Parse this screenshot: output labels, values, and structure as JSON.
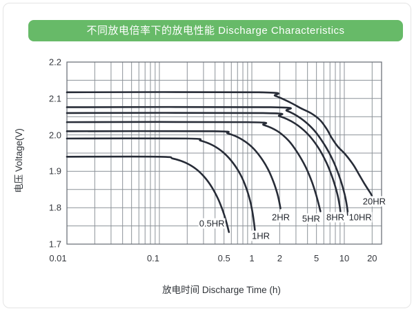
{
  "header": {
    "title": "不同放电倍率下的放电性能 Discharge Characteristics",
    "bg_color": "#67ba68",
    "text_color": "#ffffff"
  },
  "chart_data": {
    "type": "line",
    "title": "不同放电倍率下的放电性能 Discharge Characteristics",
    "x_title": "放电时间  Discharge Time (h)",
    "y_title": "电压  Voltage(V)",
    "x_scale": "log",
    "x_range": [
      0.01,
      25.3
    ],
    "y_range": [
      1.7,
      2.2
    ],
    "y_grid_step": 0.05,
    "grid": true,
    "legend": "inline-curve-labels",
    "colors": {
      "curve": "#272c37",
      "grid": "#8c9298",
      "border": "#6e737b",
      "text": "#36393f"
    },
    "y_ticks": [
      {
        "v": 2.2,
        "label": "2.2"
      },
      {
        "v": 2.1,
        "label": "2.1"
      },
      {
        "v": 2.0,
        "label": "2.0"
      },
      {
        "v": 1.9,
        "label": "1.9"
      },
      {
        "v": 1.8,
        "label": "1.8"
      },
      {
        "v": 1.7,
        "label": "1.7"
      }
    ],
    "x_ticks": [
      {
        "v": 0.01,
        "label": "0.01",
        "dx": -13
      },
      {
        "v": 0.1,
        "label": "0.1",
        "dx": -9
      },
      {
        "v": 0.5,
        "label": "0.5",
        "dx": 0
      },
      {
        "v": 1,
        "label": "1",
        "dx": 0
      },
      {
        "v": 2,
        "label": "2",
        "dx": 0
      },
      {
        "v": 5,
        "label": "5",
        "dx": 0
      },
      {
        "v": 10,
        "label": "10",
        "dx": 0
      },
      {
        "v": 20,
        "label": "20",
        "dx": 0
      }
    ],
    "series": [
      {
        "name": "0.5HR",
        "rated_hours": 0.5,
        "plateau_v": 1.94,
        "label_pos": [
          0.37,
          1.757
        ],
        "points": [
          [
            0.01,
            1.94
          ],
          [
            0.1,
            1.94
          ],
          [
            0.14,
            1.935
          ],
          [
            0.19,
            1.924
          ],
          [
            0.25,
            1.906
          ],
          [
            0.31,
            1.883
          ],
          [
            0.37,
            1.856
          ],
          [
            0.43,
            1.825
          ],
          [
            0.48,
            1.795
          ],
          [
            0.52,
            1.768
          ],
          [
            0.55,
            1.745
          ],
          [
            0.565,
            1.733
          ]
        ]
      },
      {
        "name": "1HR",
        "rated_hours": 1,
        "plateau_v": 1.99,
        "label_pos": [
          1.25,
          1.723
        ],
        "points": [
          [
            0.01,
            1.99
          ],
          [
            0.2,
            1.99
          ],
          [
            0.28,
            1.984
          ],
          [
            0.38,
            1.971
          ],
          [
            0.5,
            1.95
          ],
          [
            0.63,
            1.922
          ],
          [
            0.76,
            1.889
          ],
          [
            0.87,
            1.854
          ],
          [
            0.96,
            1.818
          ],
          [
            1.02,
            1.785
          ],
          [
            1.06,
            1.755
          ],
          [
            1.08,
            1.737
          ]
        ]
      },
      {
        "name": "2HR",
        "rated_hours": 2,
        "plateau_v": 2.01,
        "label_pos": [
          2.06,
          1.774
        ],
        "points": [
          [
            0.01,
            2.01
          ],
          [
            0.38,
            2.01
          ],
          [
            0.55,
            2.004
          ],
          [
            0.75,
            1.99
          ],
          [
            1.0,
            1.967
          ],
          [
            1.25,
            1.938
          ],
          [
            1.5,
            1.905
          ],
          [
            1.72,
            1.87
          ],
          [
            1.89,
            1.838
          ],
          [
            1.99,
            1.813
          ],
          [
            2.04,
            1.798
          ]
        ]
      },
      {
        "name": "5HR",
        "rated_hours": 5,
        "plateau_v": 2.035,
        "label_pos": [
          4.38,
          1.77
        ],
        "points": [
          [
            0.01,
            2.035
          ],
          [
            0.9,
            2.035
          ],
          [
            1.35,
            2.027
          ],
          [
            1.9,
            2.01
          ],
          [
            2.5,
            1.984
          ],
          [
            3.1,
            1.952
          ],
          [
            3.8,
            1.913
          ],
          [
            4.45,
            1.872
          ],
          [
            4.95,
            1.836
          ],
          [
            5.3,
            1.808
          ],
          [
            5.52,
            1.79
          ]
        ]
      },
      {
        "name": "8HR",
        "rated_hours": 8,
        "plateau_v": 2.06,
        "label_pos": [
          8.0,
          1.774
        ],
        "points": [
          [
            0.01,
            2.06
          ],
          [
            1.3,
            2.06
          ],
          [
            2.0,
            2.051
          ],
          [
            2.9,
            2.032
          ],
          [
            4.0,
            2.003
          ],
          [
            5.2,
            1.966
          ],
          [
            6.4,
            1.924
          ],
          [
            7.5,
            1.88
          ],
          [
            8.4,
            1.838
          ],
          [
            8.9,
            1.806
          ],
          [
            9.1,
            1.786
          ]
        ]
      },
      {
        "name": "10HR",
        "rated_hours": 10,
        "plateau_v": 2.076,
        "label_pos": [
          14.9,
          1.774
        ],
        "points": [
          [
            0.01,
            2.076
          ],
          [
            1.6,
            2.076
          ],
          [
            2.4,
            2.066
          ],
          [
            3.4,
            2.045
          ],
          [
            4.7,
            2.013
          ],
          [
            6.1,
            1.973
          ],
          [
            7.6,
            1.928
          ],
          [
            9.0,
            1.88
          ],
          [
            10.1,
            1.836
          ],
          [
            10.7,
            1.803
          ],
          [
            10.95,
            1.78
          ]
        ]
      },
      {
        "name": "20HR",
        "rated_hours": 20,
        "plateau_v": 2.117,
        "label_pos": [
          21.1,
          1.817
        ],
        "points": [
          [
            0.01,
            2.117
          ],
          [
            1.2,
            2.117
          ],
          [
            1.8,
            2.107
          ],
          [
            2.6,
            2.089
          ],
          [
            3.4,
            2.073
          ],
          [
            4.4,
            2.059
          ],
          [
            5.5,
            2.04
          ],
          [
            6.5,
            2.015
          ],
          [
            7.3,
            1.992
          ],
          [
            8.5,
            1.968
          ],
          [
            10.3,
            1.946
          ],
          [
            12.5,
            1.918
          ],
          [
            14.6,
            1.889
          ],
          [
            16.5,
            1.866
          ],
          [
            18.2,
            1.849
          ],
          [
            19.6,
            1.836
          ],
          [
            20.5,
            1.823
          ]
        ]
      }
    ]
  }
}
